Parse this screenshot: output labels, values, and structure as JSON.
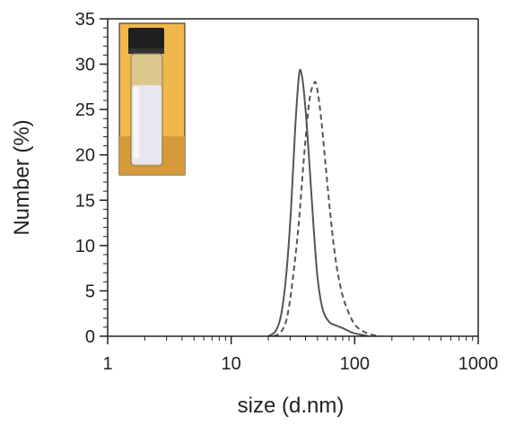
{
  "chart_data": {
    "type": "line",
    "xlabel": "size (d.nm)",
    "ylabel": "Number (%)",
    "xscale": "log",
    "xlim": [
      1,
      1000
    ],
    "ylim": [
      0,
      35
    ],
    "x_ticks": [
      1,
      10,
      100,
      1000
    ],
    "x_tick_labels": [
      "1",
      "10",
      "100",
      "1000"
    ],
    "y_ticks": [
      0,
      5,
      10,
      15,
      20,
      25,
      30,
      35
    ],
    "y_tick_labels": [
      "0",
      "5",
      "10",
      "15",
      "20",
      "25",
      "30",
      "35"
    ],
    "grid": false,
    "legend": "none",
    "series": [
      {
        "style": "solid",
        "color": "#555555",
        "points": [
          [
            20,
            0
          ],
          [
            23,
            0.6
          ],
          [
            25.5,
            2.5
          ],
          [
            28,
            7
          ],
          [
            30.5,
            14
          ],
          [
            33,
            23
          ],
          [
            35.5,
            28.9
          ],
          [
            37.5,
            28.6
          ],
          [
            40,
            25
          ],
          [
            43,
            19
          ],
          [
            46.5,
            12
          ],
          [
            50,
            6.5
          ],
          [
            55,
            3
          ],
          [
            62,
            1.6
          ],
          [
            70,
            1.2
          ],
          [
            80,
            0.9
          ],
          [
            95,
            0.4
          ],
          [
            110,
            0.2
          ],
          [
            130,
            0
          ]
        ]
      },
      {
        "style": "dashed",
        "color": "#555555",
        "points": [
          [
            22,
            0
          ],
          [
            25,
            0.4
          ],
          [
            28,
            1.8
          ],
          [
            31,
            5.5
          ],
          [
            35,
            12
          ],
          [
            39,
            20
          ],
          [
            43,
            26
          ],
          [
            46.5,
            27.8
          ],
          [
            49,
            27.7
          ],
          [
            53,
            24.5
          ],
          [
            58,
            19
          ],
          [
            64,
            13
          ],
          [
            70,
            8.5
          ],
          [
            78,
            5
          ],
          [
            88,
            2.8
          ],
          [
            100,
            1.3
          ],
          [
            115,
            0.6
          ],
          [
            135,
            0.2
          ],
          [
            160,
            0
          ]
        ]
      }
    ]
  },
  "inset": {
    "description_icon": "vial-photo-icon",
    "colors": {
      "background": "#f0b84a",
      "cap": "#1e1e1e",
      "liquid": "#e9e6f0"
    }
  }
}
